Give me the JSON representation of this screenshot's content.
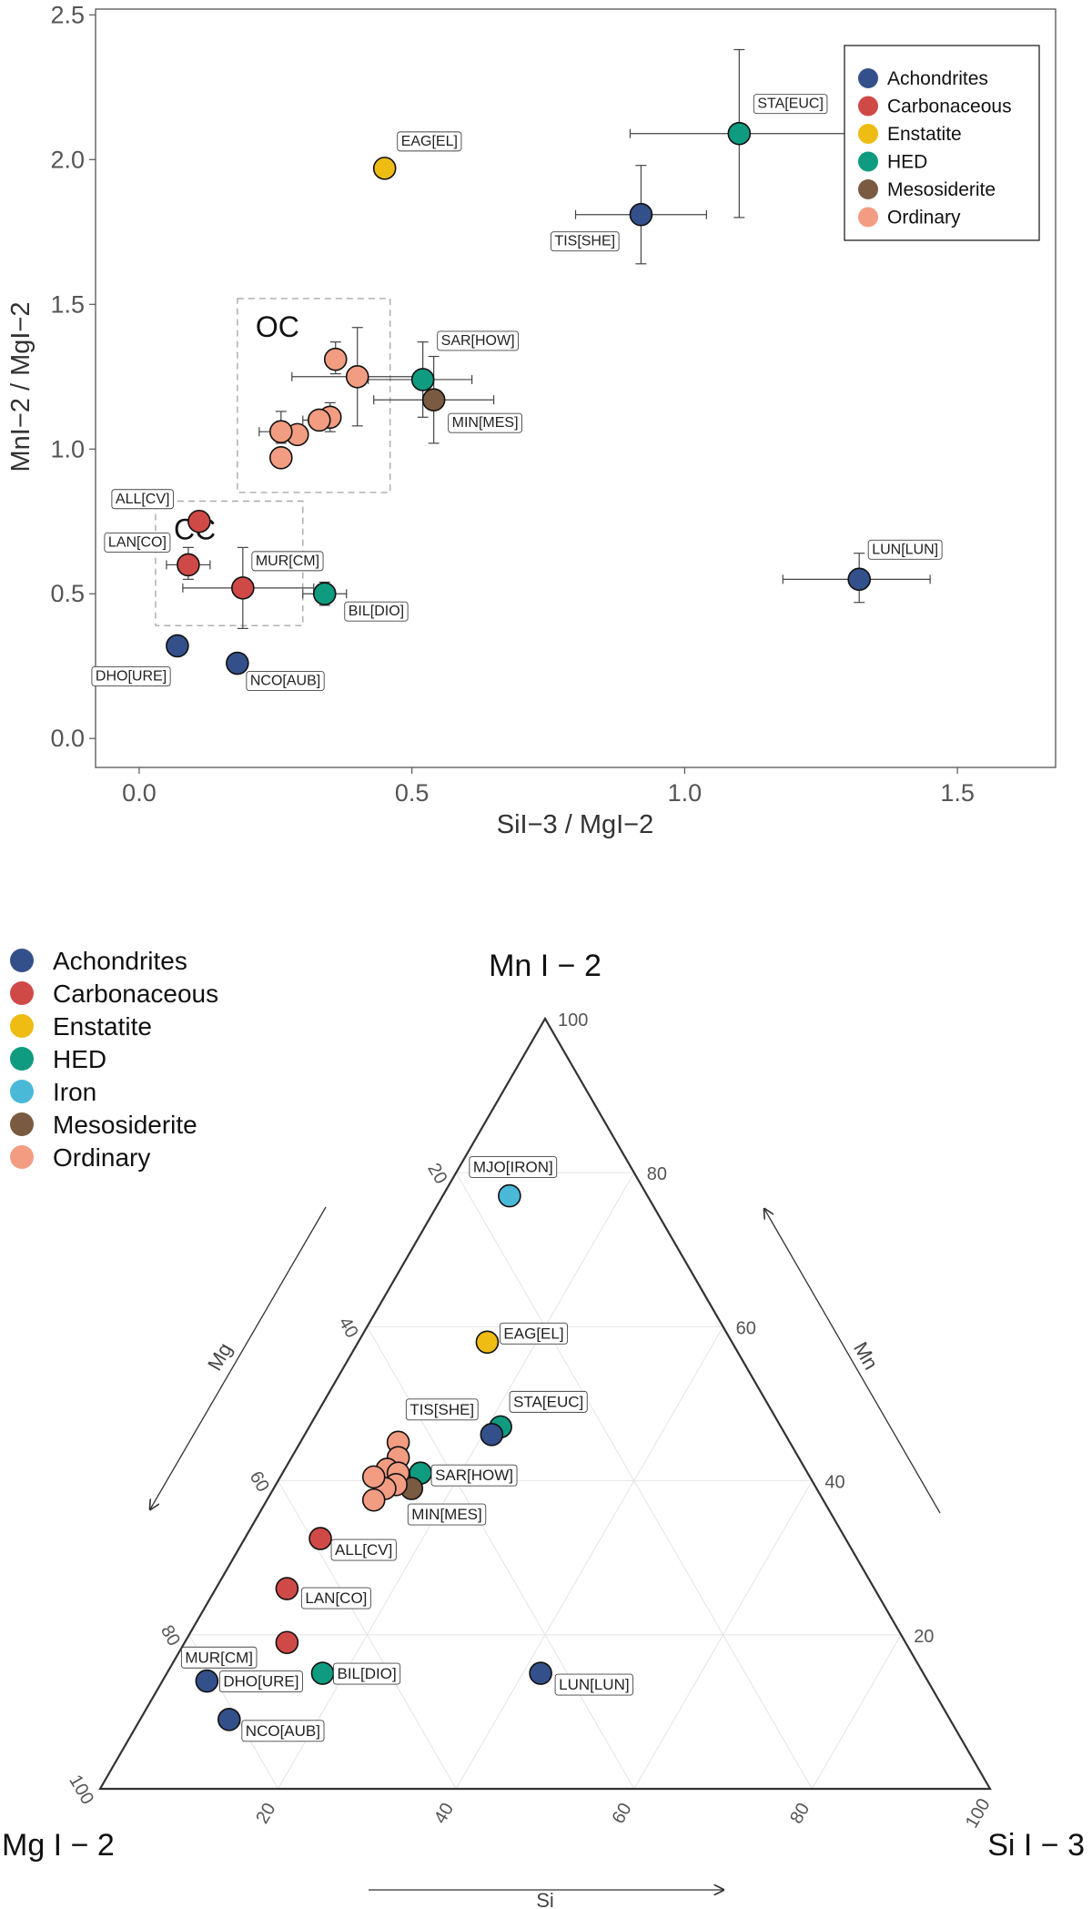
{
  "colors": {
    "Achondrites": "#34508a",
    "Carbonaceous": "#cf4a46",
    "Enstatite": "#eebc12",
    "HED": "#0e9b7f",
    "Iron": "#4ab9d8",
    "Mesosiderite": "#7a5a40",
    "Ordinary": "#f29c82",
    "axis": "#555555",
    "grid": "#e4e4e4",
    "box": "#aaaaaa"
  },
  "chart_data": [
    {
      "type": "scatter",
      "title": "",
      "xlabel": "SiI−3 / MgI−2",
      "ylabel": "MnI−2 / MgI−2",
      "xlim": [
        -0.08,
        1.68
      ],
      "ylim": [
        -0.1,
        2.52
      ],
      "xticks": [
        0.0,
        0.5,
        1.0,
        1.5
      ],
      "xticklabels": [
        "0.0",
        "0.5",
        "1.0",
        "1.5"
      ],
      "yticks": [
        0.0,
        0.5,
        1.0,
        1.5,
        2.0,
        2.5
      ],
      "yticklabels": [
        "0.0",
        "0.5",
        "1.0",
        "1.5",
        "2.0",
        "2.5"
      ],
      "legend": {
        "position": "top-right",
        "entries": [
          "Achondrites",
          "Carbonaceous",
          "Enstatite",
          "HED",
          "Mesosiderite",
          "Ordinary"
        ]
      },
      "regions": [
        {
          "label": "OC",
          "x": [
            0.18,
            0.46
          ],
          "y": [
            0.85,
            1.52
          ]
        },
        {
          "label": "CC",
          "x": [
            0.03,
            0.3
          ],
          "y": [
            0.39,
            0.82
          ]
        }
      ],
      "points": [
        {
          "label": "STA[EUC]",
          "group": "HED",
          "x": 1.1,
          "y": 2.09,
          "xerr": [
            0.9,
            1.3
          ],
          "yerr": [
            1.8,
            2.38
          ]
        },
        {
          "label": "TIS[SHE]",
          "group": "Achondrites",
          "x": 0.92,
          "y": 1.81,
          "xerr": [
            0.8,
            1.04
          ],
          "yerr": [
            1.64,
            1.98
          ]
        },
        {
          "label": "EAG[EL]",
          "group": "Enstatite",
          "x": 0.45,
          "y": 1.97
        },
        {
          "label": "SAR[HOW]",
          "group": "HED",
          "x": 0.52,
          "y": 1.24,
          "xerr": [
            0.42,
            0.61
          ],
          "yerr": [
            1.11,
            1.37
          ]
        },
        {
          "label": "MIN[MES]",
          "group": "Mesosiderite",
          "x": 0.54,
          "y": 1.17,
          "xerr": [
            0.43,
            0.65
          ],
          "yerr": [
            1.02,
            1.32
          ]
        },
        {
          "label": "",
          "group": "Ordinary",
          "x": 0.36,
          "y": 1.31,
          "yerr": [
            1.26,
            1.37
          ]
        },
        {
          "label": "",
          "group": "Ordinary",
          "x": 0.4,
          "y": 1.25,
          "xerr": [
            0.28,
            0.52
          ],
          "yerr": [
            1.08,
            1.42
          ]
        },
        {
          "label": "",
          "group": "Ordinary",
          "x": 0.35,
          "y": 1.11,
          "yerr": [
            1.06,
            1.16
          ]
        },
        {
          "label": "",
          "group": "Ordinary",
          "x": 0.33,
          "y": 1.1,
          "xerr": [
            0.3,
            0.36
          ]
        },
        {
          "label": "",
          "group": "Ordinary",
          "x": 0.29,
          "y": 1.05
        },
        {
          "label": "",
          "group": "Ordinary",
          "x": 0.26,
          "y": 1.06,
          "xerr": [
            0.22,
            0.3
          ],
          "yerr": [
            1.02,
            1.13
          ]
        },
        {
          "label": "",
          "group": "Ordinary",
          "x": 0.26,
          "y": 0.97
        },
        {
          "label": "ALL[CV]",
          "group": "Carbonaceous",
          "x": 0.11,
          "y": 0.75
        },
        {
          "label": "LAN[CO]",
          "group": "Carbonaceous",
          "x": 0.09,
          "y": 0.6,
          "xerr": [
            0.05,
            0.13
          ],
          "yerr": [
            0.55,
            0.66
          ]
        },
        {
          "label": "MUR[CM]",
          "group": "Carbonaceous",
          "x": 0.19,
          "y": 0.52,
          "xerr": [
            0.08,
            0.32
          ],
          "yerr": [
            0.38,
            0.66
          ]
        },
        {
          "label": "BIL[DIO]",
          "group": "HED",
          "x": 0.34,
          "y": 0.5,
          "xerr": [
            0.3,
            0.38
          ],
          "yerr": [
            0.46,
            0.54
          ]
        },
        {
          "label": "DHO[URE]",
          "group": "Achondrites",
          "x": 0.07,
          "y": 0.32
        },
        {
          "label": "NCO[AUB]",
          "group": "Achondrites",
          "x": 0.18,
          "y": 0.26
        },
        {
          "label": "LUN[LUN]",
          "group": "Achondrites",
          "x": 1.32,
          "y": 0.55,
          "xerr": [
            1.18,
            1.45
          ],
          "yerr": [
            0.47,
            0.64
          ]
        }
      ]
    },
    {
      "type": "ternary",
      "title": "",
      "top_label": "Mn I − 2",
      "left_label": "Mg I − 2",
      "right_label": "Si I − 3",
      "axis_arrows": {
        "mg": "Mg",
        "mn": "Mn",
        "si": "Si"
      },
      "ticks": [
        20,
        40,
        60,
        80,
        100
      ],
      "legend": {
        "position": "top-left",
        "entries": [
          "Achondrites",
          "Carbonaceous",
          "Enstatite",
          "HED",
          "Iron",
          "Mesosiderite",
          "Ordinary"
        ]
      },
      "points": [
        {
          "label": "MJO[IRON]",
          "group": "Iron",
          "mg": 15.5,
          "si": 7.5,
          "mn": 77
        },
        {
          "label": "EAG[EL]",
          "group": "Enstatite",
          "mg": 27.5,
          "si": 14.5,
          "mn": 58
        },
        {
          "label": "STA[EUC]",
          "group": "HED",
          "mg": 31.5,
          "si": 21.5,
          "mn": 47
        },
        {
          "label": "TIS[SHE]",
          "group": "Achondrites",
          "mg": 33,
          "si": 21,
          "mn": 46
        },
        {
          "label": "SAR[HOW]",
          "group": "HED",
          "mg": 43.5,
          "si": 15.5,
          "mn": 41
        },
        {
          "label": "MIN[MES]",
          "group": "Mesosiderite",
          "mg": 45.5,
          "si": 15.5,
          "mn": 39
        },
        {
          "label": "",
          "group": "Ordinary",
          "mg": 44,
          "si": 11,
          "mn": 45
        },
        {
          "label": "",
          "group": "Ordinary",
          "mg": 45,
          "si": 12,
          "mn": 43
        },
        {
          "label": "",
          "group": "Ordinary",
          "mg": 47,
          "si": 11.5,
          "mn": 41.5
        },
        {
          "label": "",
          "group": "Ordinary",
          "mg": 46,
          "si": 13,
          "mn": 41
        },
        {
          "label": "",
          "group": "Ordinary",
          "mg": 47,
          "si": 13.5,
          "mn": 39.5
        },
        {
          "label": "",
          "group": "Ordinary",
          "mg": 48.5,
          "si": 12.5,
          "mn": 39
        },
        {
          "label": "",
          "group": "Ordinary",
          "mg": 50.5,
          "si": 12,
          "mn": 37.5
        },
        {
          "label": "",
          "group": "Ordinary",
          "mg": 49,
          "si": 10.5,
          "mn": 40.5
        },
        {
          "label": "ALL[CV]",
          "group": "Carbonaceous",
          "mg": 59,
          "si": 8.5,
          "mn": 32.5
        },
        {
          "label": "LAN[CO]",
          "group": "Carbonaceous",
          "mg": 66,
          "si": 8,
          "mn": 26
        },
        {
          "label": "MUR[CM]",
          "group": "Carbonaceous",
          "mg": 69.5,
          "si": 11.5,
          "mn": 19
        },
        {
          "label": "BIL[DIO]",
          "group": "HED",
          "mg": 67.5,
          "si": 17.5,
          "mn": 15
        },
        {
          "label": "DHO[URE]",
          "group": "Achondrites",
          "mg": 81,
          "si": 5,
          "mn": 14
        },
        {
          "label": "NCO[AUB]",
          "group": "Achondrites",
          "mg": 81,
          "si": 10,
          "mn": 9
        },
        {
          "label": "LUN[LUN]",
          "group": "Achondrites",
          "mg": 43,
          "si": 42,
          "mn": 15
        }
      ]
    }
  ]
}
